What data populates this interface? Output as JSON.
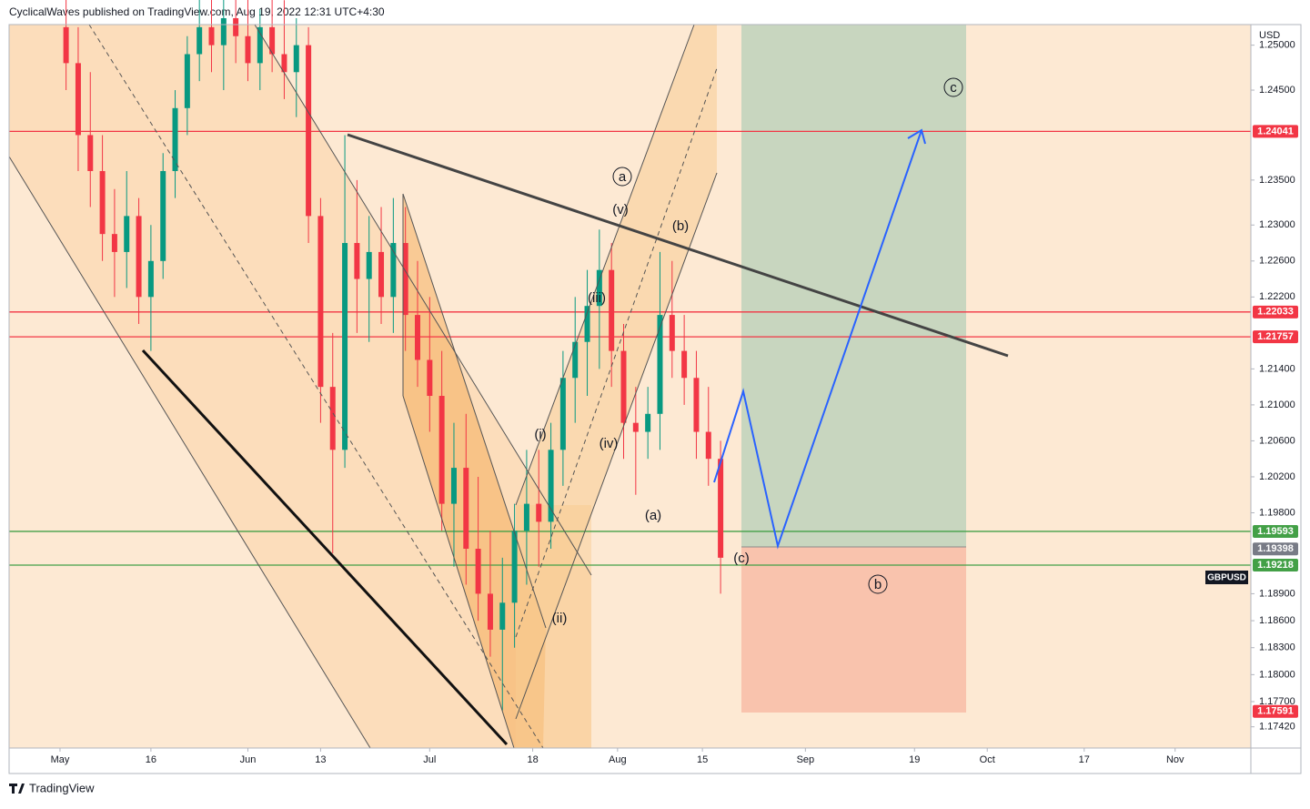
{
  "chart_data": {
    "type": "candlestick",
    "header": "CyclicalWaves published on TradingView.com, Aug 19, 2022 12:31 UTC+4:30",
    "currency": "USD",
    "symbol": "GBPUSD",
    "brand": "TradingView",
    "up_color": "#089981",
    "down_color": "#f23645",
    "xlim": [
      112.6,
      317.5
    ],
    "ylim": [
      1.17184,
      1.25229
    ],
    "xticks": [
      {
        "value": 121,
        "label": "May"
      },
      {
        "value": 136,
        "label": "16"
      },
      {
        "value": 152,
        "label": "Jun"
      },
      {
        "value": 164,
        "label": "13"
      },
      {
        "value": 182,
        "label": "Jul"
      },
      {
        "value": 199,
        "label": "18"
      },
      {
        "value": 213,
        "label": "Aug"
      },
      {
        "value": 227,
        "label": "15"
      },
      {
        "value": 244,
        "label": "Sep"
      },
      {
        "value": 262,
        "label": "19"
      },
      {
        "value": 274,
        "label": "Oct"
      },
      {
        "value": 290,
        "label": "17"
      },
      {
        "value": 305,
        "label": "Nov"
      }
    ],
    "yticks": [
      {
        "value": 1.25,
        "label": "1.25000"
      },
      {
        "value": 1.245,
        "label": "1.24500"
      },
      {
        "value": 1.235,
        "label": "1.23500"
      },
      {
        "value": 1.23,
        "label": "1.23000"
      },
      {
        "value": 1.226,
        "label": "1.22600"
      },
      {
        "value": 1.222,
        "label": "1.22200"
      },
      {
        "value": 1.214,
        "label": "1.21400"
      },
      {
        "value": 1.21,
        "label": "1.21000"
      },
      {
        "value": 1.206,
        "label": "1.20600"
      },
      {
        "value": 1.202,
        "label": "1.20200"
      },
      {
        "value": 1.198,
        "label": "1.19800"
      },
      {
        "value": 1.189,
        "label": "1.18900"
      },
      {
        "value": 1.186,
        "label": "1.18600"
      },
      {
        "value": 1.183,
        "label": "1.18300"
      },
      {
        "value": 1.18,
        "label": "1.18000"
      },
      {
        "value": 1.177,
        "label": "1.17700"
      },
      {
        "value": 1.1742,
        "label": "1.17420"
      }
    ],
    "levels": [
      {
        "value": 1.24041,
        "label": "1.24041",
        "color": "#f23645",
        "line": true
      },
      {
        "value": 1.22033,
        "label": "1.22033",
        "color": "#f23645",
        "line": true
      },
      {
        "value": 1.21757,
        "label": "1.21757",
        "color": "#f23645",
        "line": true
      },
      {
        "value": 1.19593,
        "label": "1.19593",
        "color": "#43a047",
        "line": true
      },
      {
        "value": 1.19398,
        "label": "1.19398",
        "color": "#787b86",
        "line": false
      },
      {
        "value": 1.19218,
        "label": "1.19218",
        "color": "#43a047",
        "line": true
      },
      {
        "value": 1.17591,
        "label": "1.17591",
        "color": "#f23645",
        "line": false
      }
    ],
    "annotations": [
      {
        "text": "a",
        "circled": true
      },
      {
        "text": "(v)",
        "circled": false
      },
      {
        "text": "(b)",
        "circled": false
      },
      {
        "text": "(iii)",
        "circled": false
      },
      {
        "text": "(i)",
        "circled": false
      },
      {
        "text": "(iv)",
        "circled": false
      },
      {
        "text": "(a)",
        "circled": false
      },
      {
        "text": "(ii)",
        "circled": false
      },
      {
        "text": "(c)",
        "circled": false
      },
      {
        "text": "b",
        "circled": true
      },
      {
        "text": "c",
        "circled": true
      }
    ],
    "x": [
      122,
      124,
      126,
      128,
      130,
      132,
      134,
      136,
      138,
      140,
      142,
      144,
      146,
      148,
      150,
      152,
      154,
      156,
      158,
      160,
      162,
      164,
      166,
      168,
      170,
      172,
      174,
      176,
      178,
      180,
      182,
      184,
      186,
      188,
      190,
      192,
      194,
      196,
      198,
      200,
      202,
      204,
      206,
      208,
      210,
      212,
      214,
      216,
      218,
      220,
      222,
      224,
      226,
      228,
      230
    ],
    "open": [
      1.252,
      1.248,
      1.24,
      1.236,
      1.229,
      1.227,
      1.231,
      1.222,
      1.226,
      1.236,
      1.243,
      1.249,
      1.252,
      1.25,
      1.253,
      1.251,
      1.248,
      1.252,
      1.249,
      1.247,
      1.25,
      1.231,
      1.212,
      1.205,
      1.228,
      1.224,
      1.227,
      1.222,
      1.228,
      1.22,
      1.215,
      1.211,
      1.199,
      1.203,
      1.194,
      1.189,
      1.185,
      1.188,
      1.196,
      1.199,
      1.197,
      1.205,
      1.213,
      1.217,
      1.221,
      1.225,
      1.216,
      1.208,
      1.207,
      1.209,
      1.22,
      1.216,
      1.213,
      1.207,
      1.204
    ],
    "high": [
      1.258,
      1.252,
      1.247,
      1.24,
      1.234,
      1.236,
      1.233,
      1.23,
      1.238,
      1.245,
      1.251,
      1.256,
      1.257,
      1.256,
      1.258,
      1.256,
      1.254,
      1.257,
      1.255,
      1.253,
      1.252,
      1.233,
      1.218,
      1.24,
      1.235,
      1.231,
      1.232,
      1.233,
      1.232,
      1.226,
      1.222,
      1.216,
      1.208,
      1.209,
      1.202,
      1.196,
      1.193,
      1.199,
      1.205,
      1.205,
      1.208,
      1.216,
      1.222,
      1.225,
      1.2295,
      1.228,
      1.219,
      1.212,
      1.212,
      1.227,
      1.226,
      1.22,
      1.216,
      1.212,
      1.206
    ],
    "low": [
      1.245,
      1.236,
      1.232,
      1.226,
      1.222,
      1.223,
      1.219,
      1.216,
      1.224,
      1.233,
      1.24,
      1.246,
      1.247,
      1.245,
      1.248,
      1.246,
      1.245,
      1.247,
      1.244,
      1.242,
      1.228,
      1.208,
      1.1935,
      1.203,
      1.218,
      1.217,
      1.219,
      1.218,
      1.216,
      1.212,
      1.207,
      1.196,
      1.192,
      1.19,
      1.186,
      1.182,
      1.176,
      1.183,
      1.19,
      1.192,
      1.194,
      1.201,
      1.208,
      1.211,
      1.214,
      1.212,
      1.204,
      1.2,
      1.204,
      1.205,
      1.213,
      1.21,
      1.204,
      1.201,
      1.189
    ],
    "close": [
      1.248,
      1.24,
      1.236,
      1.229,
      1.227,
      1.231,
      1.222,
      1.226,
      1.236,
      1.243,
      1.249,
      1.252,
      1.25,
      1.253,
      1.251,
      1.248,
      1.252,
      1.249,
      1.247,
      1.25,
      1.231,
      1.212,
      1.205,
      1.228,
      1.224,
      1.227,
      1.222,
      1.228,
      1.22,
      1.215,
      1.211,
      1.199,
      1.203,
      1.194,
      1.189,
      1.185,
      1.188,
      1.196,
      1.199,
      1.197,
      1.205,
      1.213,
      1.217,
      1.221,
      1.225,
      1.216,
      1.208,
      1.207,
      1.209,
      1.22,
      1.216,
      1.213,
      1.207,
      1.204,
      1.193
    ]
  }
}
